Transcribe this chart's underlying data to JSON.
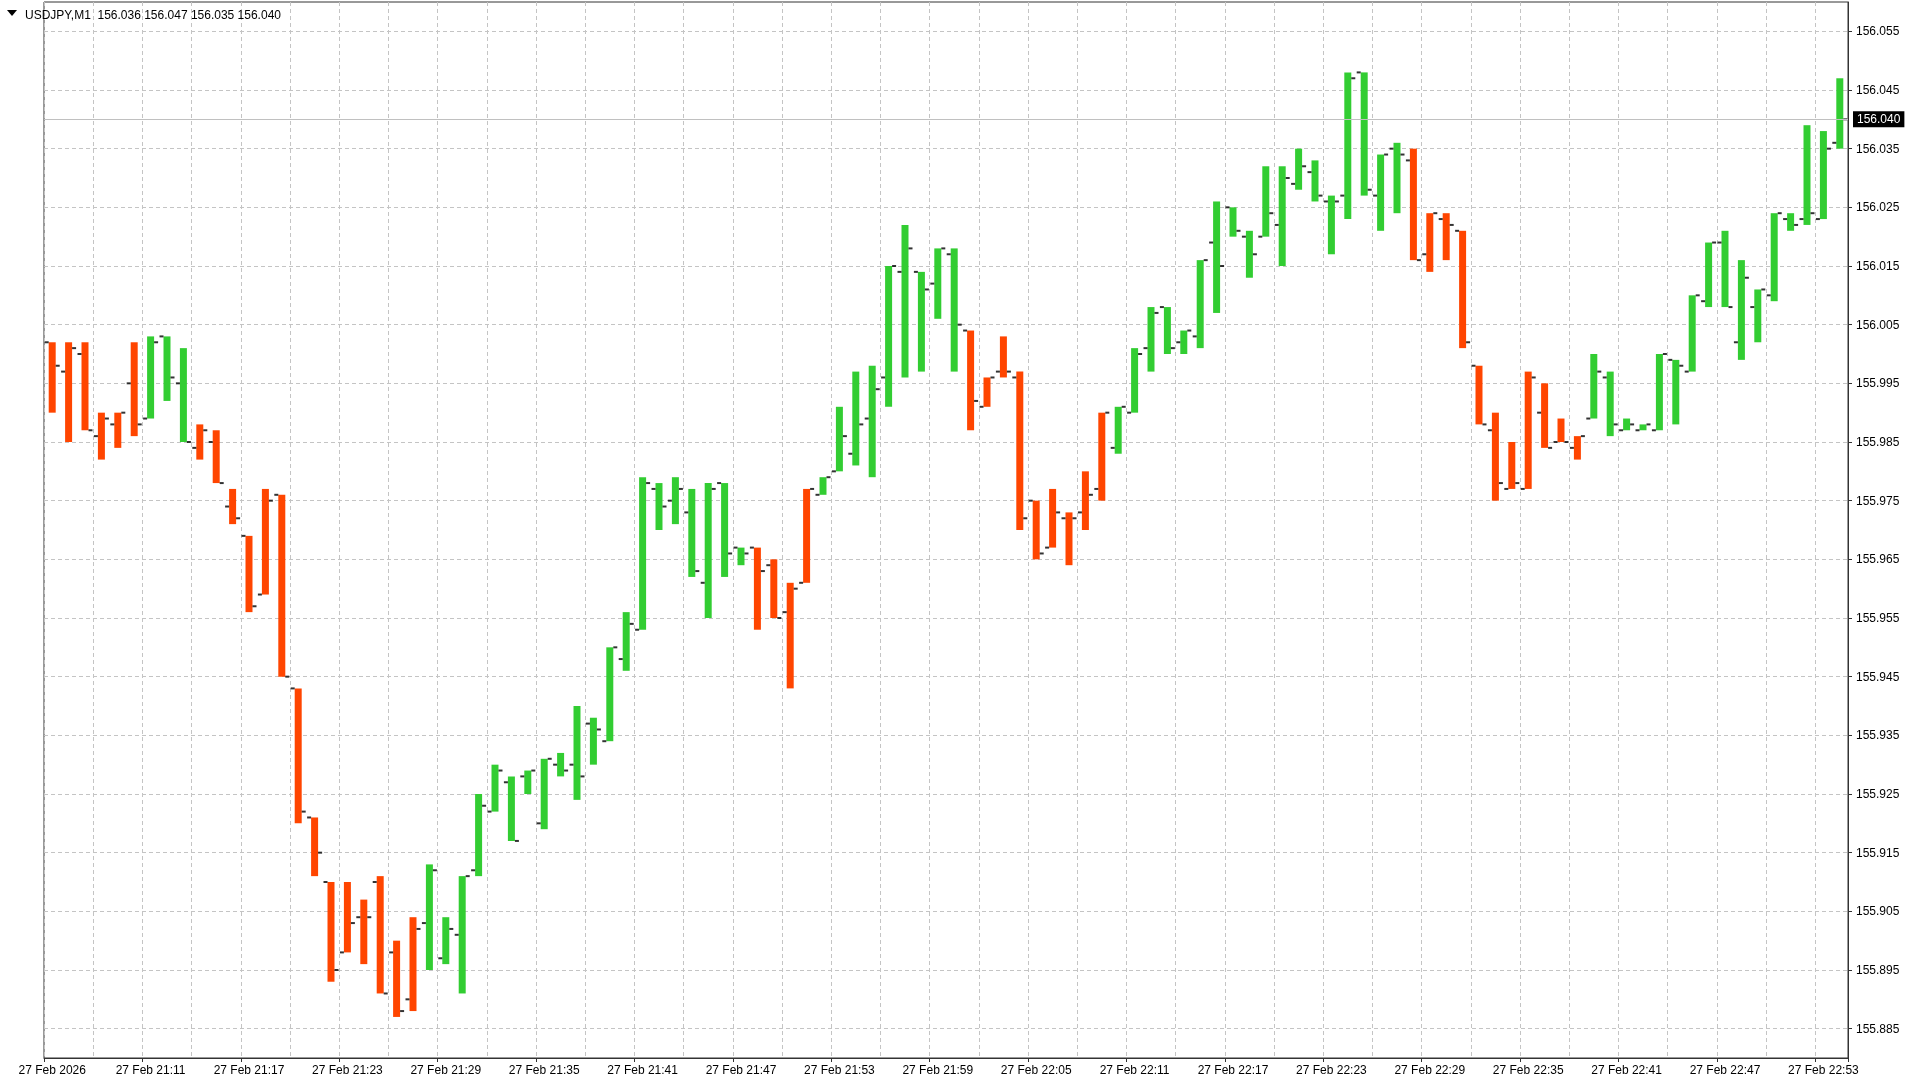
{
  "chart_data": {
    "type": "bar",
    "title": "USDJPY,M1  156.036 156.047 156.035 156.040",
    "categories": [
      "27 Feb 2026",
      null,
      null,
      null,
      null,
      null,
      "27 Feb 21:11",
      null,
      null,
      null,
      null,
      null,
      "27 Feb 21:17",
      null,
      null,
      null,
      null,
      null,
      "27 Feb 21:23",
      null,
      null,
      null,
      null,
      null,
      "27 Feb 21:29",
      null,
      null,
      null,
      null,
      null,
      "27 Feb 21:35",
      null,
      null,
      null,
      null,
      null,
      "27 Feb 21:41",
      null,
      null,
      null,
      null,
      null,
      "27 Feb 21:47",
      null,
      null,
      null,
      null,
      null,
      "27 Feb 21:53",
      null,
      null,
      null,
      null,
      null,
      "27 Feb 21:59",
      null,
      null,
      null,
      null,
      null,
      "27 Feb 22:05",
      null,
      null,
      null,
      null,
      null,
      "27 Feb 22:11",
      null,
      null,
      null,
      null,
      null,
      "27 Feb 22:17",
      null,
      null,
      null,
      null,
      null,
      "27 Feb 22:23",
      null,
      null,
      null,
      null,
      null,
      "27 Feb 22:29",
      null,
      null,
      null,
      null,
      null,
      "27 Feb 22:35",
      null,
      null,
      null,
      null,
      null,
      "27 Feb 22:41",
      null,
      null,
      null,
      null,
      null,
      "27 Feb 22:47",
      null,
      null,
      null,
      null,
      null,
      "27 Feb 22:53",
      null
    ],
    "series": [
      {
        "base": [
          155.99,
          155.985,
          155.987,
          155.982,
          155.984,
          155.986,
          155.989,
          155.992,
          155.985,
          155.982,
          155.978,
          155.971,
          155.956,
          155.959,
          155.945,
          155.92,
          155.911,
          155.893,
          155.898,
          155.896,
          155.891,
          155.887,
          155.888,
          155.895,
          155.896,
          155.891,
          155.911,
          155.922,
          155.917,
          155.925,
          155.919,
          155.928,
          155.924,
          155.93,
          155.934,
          155.946,
          155.953,
          155.97,
          155.971,
          155.962,
          155.955,
          155.962,
          155.964,
          155.953,
          155.955,
          155.943,
          155.961,
          155.976,
          155.98,
          155.981,
          155.979,
          155.991,
          155.996,
          155.997,
          156.006,
          155.997,
          155.987,
          155.991,
          155.996,
          155.97,
          155.965,
          155.967,
          155.964,
          155.97,
          155.975,
          155.983,
          155.99,
          155.997,
          156.0,
          156.0,
          156.001,
          156.007,
          156.02,
          156.013,
          156.02,
          156.015,
          156.028,
          156.026,
          156.017,
          156.023,
          156.027,
          156.021,
          156.024,
          156.016,
          156.014,
          156.016,
          156.001,
          155.988,
          155.975,
          155.977,
          155.977,
          155.984,
          155.985,
          155.982,
          155.989,
          155.986,
          155.987,
          155.987,
          155.987,
          155.988,
          155.997,
          156.008,
          156.008,
          155.999,
          156.002,
          156.009,
          156.021,
          156.022,
          156.023,
          156.035
        ],
        "values": [
          0.012,
          0.017,
          0.015,
          0.008,
          0.006,
          0.016,
          0.014,
          0.011,
          0.016,
          0.006,
          0.009,
          0.006,
          0.013,
          0.018,
          0.031,
          0.023,
          0.01,
          0.017,
          0.012,
          0.011,
          0.02,
          0.013,
          0.016,
          0.018,
          0.008,
          0.02,
          0.014,
          0.008,
          0.011,
          0.004,
          0.012,
          0.004,
          0.016,
          0.008,
          0.016,
          0.01,
          0.026,
          0.008,
          0.008,
          0.015,
          0.023,
          0.016,
          0.003,
          0.014,
          0.01,
          0.018,
          0.016,
          0.003,
          0.011,
          0.016,
          0.019,
          0.024,
          0.026,
          0.017,
          0.012,
          0.021,
          0.017,
          0.005,
          0.007,
          0.027,
          0.01,
          0.01,
          0.009,
          0.01,
          0.015,
          0.008,
          0.011,
          0.011,
          0.008,
          0.004,
          0.015,
          0.019,
          0.005,
          0.008,
          0.012,
          0.017,
          0.007,
          0.007,
          0.01,
          0.025,
          0.021,
          0.013,
          0.012,
          0.019,
          0.01,
          0.008,
          0.02,
          0.01,
          0.015,
          0.008,
          0.02,
          0.011,
          0.004,
          0.004,
          0.011,
          0.011,
          0.002,
          0.001,
          0.013,
          0.011,
          0.013,
          0.011,
          0.013,
          0.017,
          0.009,
          0.015,
          0.003,
          0.017,
          0.015,
          0.012
        ],
        "colors": [
          "#ff4500",
          "#ff4500",
          "#ff4500",
          "#ff4500",
          "#ff4500",
          "#ff4500",
          "#32cd32",
          "#32cd32",
          "#32cd32",
          "#ff4500",
          "#ff4500",
          "#ff4500",
          "#ff4500",
          "#ff4500",
          "#ff4500",
          "#ff4500",
          "#ff4500",
          "#ff4500",
          "#ff4500",
          "#ff4500",
          "#ff4500",
          "#ff4500",
          "#ff4500",
          "#32cd32",
          "#32cd32",
          "#32cd32",
          "#32cd32",
          "#32cd32",
          "#32cd32",
          "#32cd32",
          "#32cd32",
          "#32cd32",
          "#32cd32",
          "#32cd32",
          "#32cd32",
          "#32cd32",
          "#32cd32",
          "#32cd32",
          "#32cd32",
          "#32cd32",
          "#32cd32",
          "#32cd32",
          "#32cd32",
          "#ff4500",
          "#ff4500",
          "#ff4500",
          "#ff4500",
          "#32cd32",
          "#32cd32",
          "#32cd32",
          "#32cd32",
          "#32cd32",
          "#32cd32",
          "#32cd32",
          "#32cd32",
          "#32cd32",
          "#ff4500",
          "#ff4500",
          "#ff4500",
          "#ff4500",
          "#ff4500",
          "#ff4500",
          "#ff4500",
          "#ff4500",
          "#ff4500",
          "#32cd32",
          "#32cd32",
          "#32cd32",
          "#32cd32",
          "#32cd32",
          "#32cd32",
          "#32cd32",
          "#32cd32",
          "#32cd32",
          "#32cd32",
          "#32cd32",
          "#32cd32",
          "#32cd32",
          "#32cd32",
          "#32cd32",
          "#32cd32",
          "#32cd32",
          "#32cd32",
          "#ff4500",
          "#ff4500",
          "#ff4500",
          "#ff4500",
          "#ff4500",
          "#ff4500",
          "#ff4500",
          "#ff4500",
          "#ff4500",
          "#ff4500",
          "#ff4500",
          "#32cd32",
          "#32cd32",
          "#32cd32",
          "#32cd32",
          "#32cd32",
          "#32cd32",
          "#32cd32",
          "#32cd32",
          "#32cd32",
          "#32cd32",
          "#32cd32",
          "#32cd32",
          "#32cd32",
          "#32cd32",
          "#32cd32",
          "#32cd32"
        ]
      },
      {
        "type": "scatter",
        "color": "#000000",
        "marker": "square",
        "values": [
          156.002,
          155.997,
          156.0,
          155.986,
          155.988,
          155.995,
          155.989,
          156.003,
          155.995,
          155.984,
          155.985,
          155.974,
          155.969,
          155.959,
          155.976,
          155.943,
          155.921,
          155.91,
          155.898,
          155.904,
          155.91,
          155.898,
          155.89,
          155.903,
          155.897,
          155.901,
          155.912,
          155.922,
          155.927,
          155.928,
          155.92,
          155.93,
          155.93,
          155.937,
          155.934,
          155.948,
          155.953,
          155.977,
          155.975,
          155.973,
          155.961,
          155.978,
          155.967,
          155.967,
          155.964,
          155.956,
          155.961,
          155.976,
          155.98,
          155.983,
          155.989,
          155.996,
          156.014,
          156.014,
          156.012,
          156.017,
          156.004,
          155.991,
          155.997,
          155.996,
          155.975,
          155.967,
          155.972,
          155.973,
          155.977,
          155.984,
          155.99,
          156.001,
          156.008,
          156.002,
          156.003,
          156.019,
          156.025,
          156.02,
          156.02,
          156.022,
          156.029,
          156.031,
          156.026,
          156.027,
          156.048,
          156.027,
          156.035,
          156.033,
          156.017,
          156.023,
          156.021,
          155.998,
          155.987,
          155.977,
          155.977,
          155.99,
          155.985,
          155.984,
          155.989,
          155.996,
          155.987,
          155.987,
          155.987,
          155.999,
          155.997,
          156.009,
          156.019,
          156.002,
          156.008,
          156.01,
          156.023,
          156.023,
          156.023,
          156.036
        ]
      },
      {
        "type": "scatter",
        "color": "#000000",
        "marker": "square",
        "values": [
          155.998,
          156.001,
          155.987,
          155.989,
          155.99,
          155.988,
          156.002,
          155.996,
          155.985,
          155.987,
          155.978,
          155.972,
          155.957,
          155.975,
          155.945,
          155.922,
          155.915,
          155.895,
          155.903,
          155.904,
          155.891,
          155.888,
          155.902,
          155.912,
          155.902,
          155.911,
          155.923,
          155.929,
          155.917,
          155.929,
          155.931,
          155.929,
          155.928,
          155.936,
          155.95,
          155.954,
          155.978,
          155.974,
          155.977,
          155.963,
          155.977,
          155.966,
          155.966,
          155.963,
          155.955,
          155.96,
          155.977,
          155.979,
          155.986,
          155.988,
          155.994,
          156.015,
          156.018,
          156.011,
          156.018,
          156.005,
          155.992,
          155.996,
          155.997,
          155.972,
          155.966,
          155.973,
          155.972,
          155.976,
          155.99,
          155.991,
          156.0,
          156.007,
          156.001,
          156.004,
          156.016,
          156.015,
          156.021,
          156.017,
          156.024,
          156.03,
          156.032,
          156.027,
          156.026,
          156.047,
          156.028,
          156.034,
          156.034,
          156.016,
          156.024,
          156.022,
          156.002,
          155.988,
          155.978,
          155.978,
          155.996,
          155.984,
          155.985,
          155.986,
          155.997,
          155.988,
          155.988,
          155.988,
          156.0,
          155.998,
          156.01,
          156.019,
          156.008,
          156.013,
          156.011,
          156.024,
          156.022,
          156.024,
          156.035,
          156.04
        ]
      }
    ],
    "ylim": [
      155.88,
      156.06
    ],
    "yticks": [
      155.885,
      155.895,
      155.905,
      155.915,
      155.925,
      155.935,
      155.945,
      155.955,
      155.965,
      155.975,
      155.985,
      155.995,
      156.005,
      156.015,
      156.025,
      156.035,
      156.045,
      156.055
    ],
    "grid": true,
    "ref_lines": [
      {
        "axis": "y",
        "value": 156.04,
        "label": "156.040",
        "color": "#c0c0c0"
      }
    ]
  }
}
